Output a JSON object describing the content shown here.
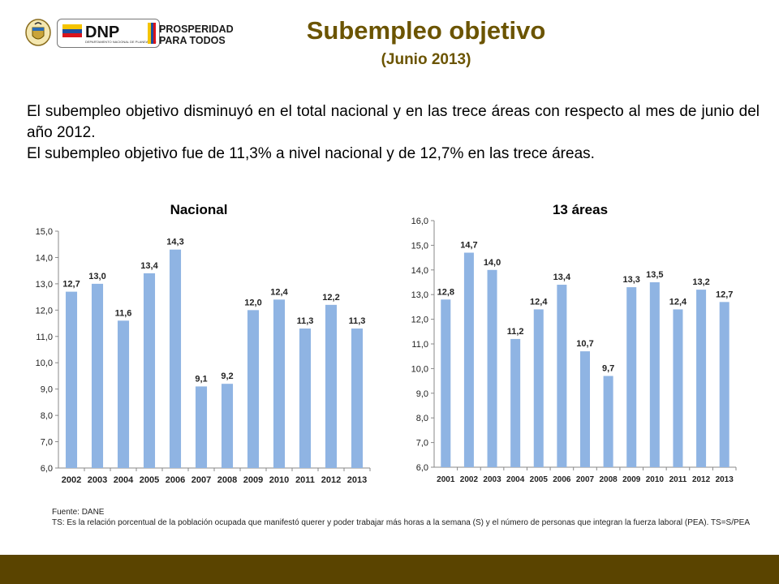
{
  "header": {
    "title": "Subempleo objetivo",
    "subtitle": "(Junio 2013)",
    "logo_dnp_text": "DNP",
    "logo_dnp_subtext": "DEPARTAMENTO NACIONAL DE PLANEACIÓN",
    "logo_prosperidad_line1": "PROSPERIDAD",
    "logo_prosperidad_line2": "PARA TODOS"
  },
  "intro": {
    "line1": "El subempleo objetivo disminuyó en el total nacional y en las trece áreas con respecto al mes de junio del año 2012.",
    "line2": "El subempleo objetivo fue de 11,3% a nivel nacional y de 12,7% en las trece áreas."
  },
  "colors": {
    "title": "#6b5400",
    "bar": "#8fb4e3",
    "bottom_bar": "#5a4400"
  },
  "chart_data": [
    {
      "type": "bar",
      "title": "Nacional",
      "categories": [
        "2002",
        "2003",
        "2004",
        "2005",
        "2006",
        "2007",
        "2008",
        "2009",
        "2010",
        "2011",
        "2012",
        "2013"
      ],
      "values": [
        12.7,
        13.0,
        11.6,
        13.4,
        14.3,
        9.1,
        9.2,
        12.0,
        12.4,
        11.3,
        12.2,
        11.3
      ],
      "data_labels": [
        "12,7",
        "13,0",
        "11,6",
        "13,4",
        "14,3",
        "9,1",
        "9,2",
        "12,0",
        "12,4",
        "11,3",
        "12,2",
        "11,3"
      ],
      "ylim": [
        6,
        15
      ],
      "yticks": [
        6,
        7,
        8,
        9,
        10,
        11,
        12,
        13,
        14,
        15
      ],
      "ytick_labels": [
        "6,0",
        "7,0",
        "8,0",
        "9,0",
        "10,0",
        "11,0",
        "12,0",
        "13,0",
        "14,0",
        "15,0"
      ],
      "xlabel": "",
      "ylabel": "",
      "grid": false
    },
    {
      "type": "bar",
      "title": "13 áreas",
      "categories": [
        "2001",
        "2002",
        "2003",
        "2004",
        "2005",
        "2006",
        "2007",
        "2008",
        "2009",
        "2010",
        "2011",
        "2012",
        "2013"
      ],
      "values": [
        12.8,
        14.7,
        14.0,
        11.2,
        12.4,
        13.4,
        10.7,
        9.7,
        13.3,
        13.5,
        12.4,
        13.2,
        12.7
      ],
      "data_labels": [
        "12,8",
        "14,7",
        "14,0",
        "11,2",
        "12,4",
        "13,4",
        "10,7",
        "9,7",
        "13,3",
        "13,5",
        "12,4",
        "13,2",
        "12,7"
      ],
      "ylim": [
        6,
        16
      ],
      "yticks": [
        6,
        7,
        8,
        9,
        10,
        11,
        12,
        13,
        14,
        15,
        16
      ],
      "ytick_labels": [
        "6,0",
        "7,0",
        "8,0",
        "9,0",
        "10,0",
        "11,0",
        "12,0",
        "13,0",
        "14,0",
        "15,0",
        "16,0"
      ],
      "xlabel": "",
      "ylabel": "",
      "grid": false
    }
  ],
  "footer": {
    "source": "Fuente: DANE",
    "note": "TS: Es la relación porcentual de la población ocupada que manifestó querer y poder trabajar más horas a la semana (S) y el número de personas que integran la fuerza laboral (PEA). TS=S/PEA"
  }
}
